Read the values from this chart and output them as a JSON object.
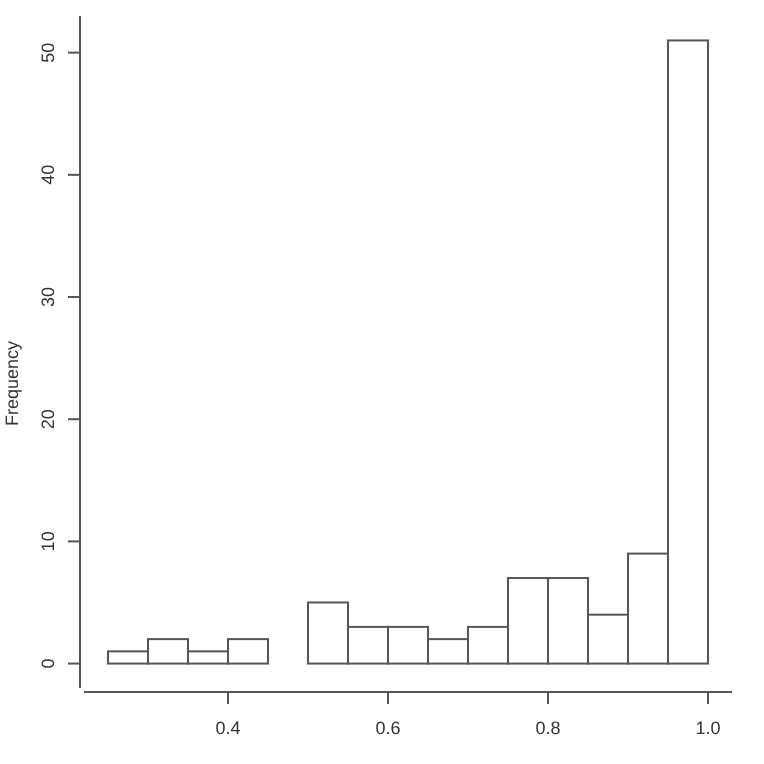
{
  "chart_data": {
    "type": "histogram",
    "ylabel": "Frequency",
    "bins": [
      0.25,
      0.3,
      0.35,
      0.4,
      0.45,
      0.5,
      0.55,
      0.6,
      0.65,
      0.7,
      0.75,
      0.8,
      0.85,
      0.9,
      0.95,
      1.0
    ],
    "values": [
      1,
      2,
      1,
      2,
      0,
      5,
      3,
      3,
      2,
      3,
      7,
      7,
      4,
      9,
      51
    ],
    "color": "#ffffff",
    "xlim": [
      0.22,
      1.03
    ],
    "xticks": [
      0.4,
      0.6,
      0.8,
      {
        "value": 1.0,
        "label": "1.0"
      }
    ],
    "ylim": [
      -2,
      53
    ],
    "yticks": [
      0,
      10,
      20,
      30,
      40,
      50
    ]
  }
}
